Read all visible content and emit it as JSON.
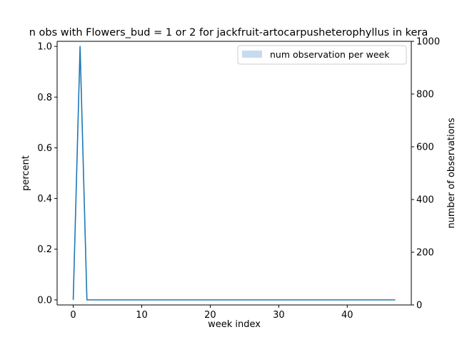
{
  "chart_data": {
    "type": "line",
    "title": "n obs with Flowers_bud = 1 or 2 for jackfruit-artocarpusheterophyllus in kera",
    "xlabel": "week index",
    "ylabel": "percent",
    "y2label": "number of observations",
    "xlim": [
      -2.35,
      49.35
    ],
    "ylim": [
      -0.02,
      1.02
    ],
    "y2lim": [
      0,
      1000
    ],
    "xticks": [
      0,
      10,
      20,
      30,
      40
    ],
    "yticks": [
      0.0,
      0.2,
      0.4,
      0.6,
      0.8,
      1.0
    ],
    "y2ticks": [
      0,
      200,
      400,
      600,
      800,
      1000
    ],
    "grid": false,
    "legend": {
      "placement": "top-right",
      "entries": [
        "num observation per week"
      ]
    },
    "colors": {
      "line": "#1f77b4",
      "bars": "#c6dbef"
    },
    "series": [
      {
        "type": "line",
        "axis": "left",
        "x": [
          0,
          1,
          2,
          3,
          4,
          5,
          6,
          7,
          8,
          9,
          10,
          11,
          12,
          13,
          14,
          15,
          16,
          17,
          18,
          19,
          20,
          21,
          22,
          23,
          24,
          25,
          26,
          27,
          28,
          29,
          30,
          31,
          32,
          33,
          34,
          35,
          36,
          37,
          38,
          39,
          40,
          41,
          42,
          43,
          44,
          45,
          46,
          47
        ],
        "values": [
          0,
          1,
          0,
          0,
          0,
          0,
          0,
          0,
          0,
          0,
          0,
          0,
          0,
          0,
          0,
          0,
          0,
          0,
          0,
          0,
          0,
          0,
          0,
          0,
          0,
          0,
          0,
          0,
          0,
          0,
          0,
          0,
          0,
          0,
          0,
          0,
          0,
          0,
          0,
          0,
          0,
          0,
          0,
          0,
          0,
          0,
          0,
          0
        ]
      },
      {
        "type": "bar",
        "axis": "right",
        "name": "num observation per week",
        "x": [],
        "values": []
      }
    ]
  }
}
